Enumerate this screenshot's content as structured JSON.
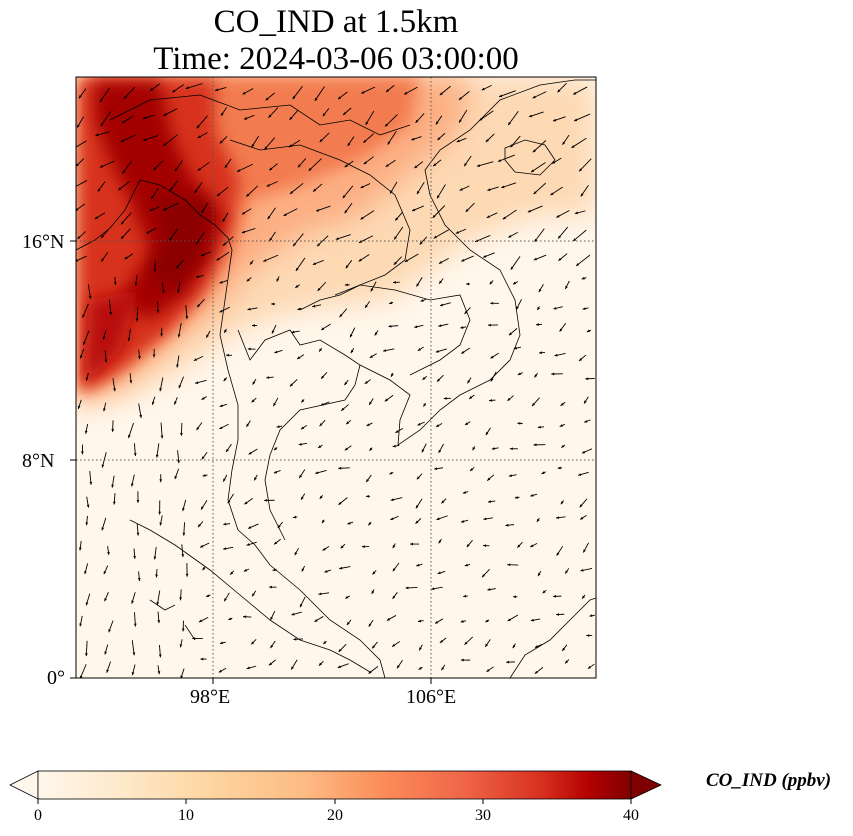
{
  "title": {
    "line1": "CO_IND at 1.5km",
    "line2": "Time: 2024-03-06 03:00:00"
  },
  "map": {
    "lon_range": [
      93,
      112
    ],
    "lat_range": [
      0,
      22
    ],
    "lon_ticks": [
      "98°E",
      "106°E"
    ],
    "lat_ticks": [
      "0°",
      "8°N",
      "16°N"
    ],
    "gridlines": "dotted"
  },
  "colorbar": {
    "label": "CO_IND (ppbv)",
    "colormap": "OrRd",
    "range": [
      0,
      40
    ],
    "ticks": [
      "0",
      "10",
      "20",
      "30",
      "40"
    ],
    "extend": "both"
  },
  "colors": {
    "low": "#fff7ec",
    "mid": "#fc8d59",
    "high": "#7f0000"
  }
}
